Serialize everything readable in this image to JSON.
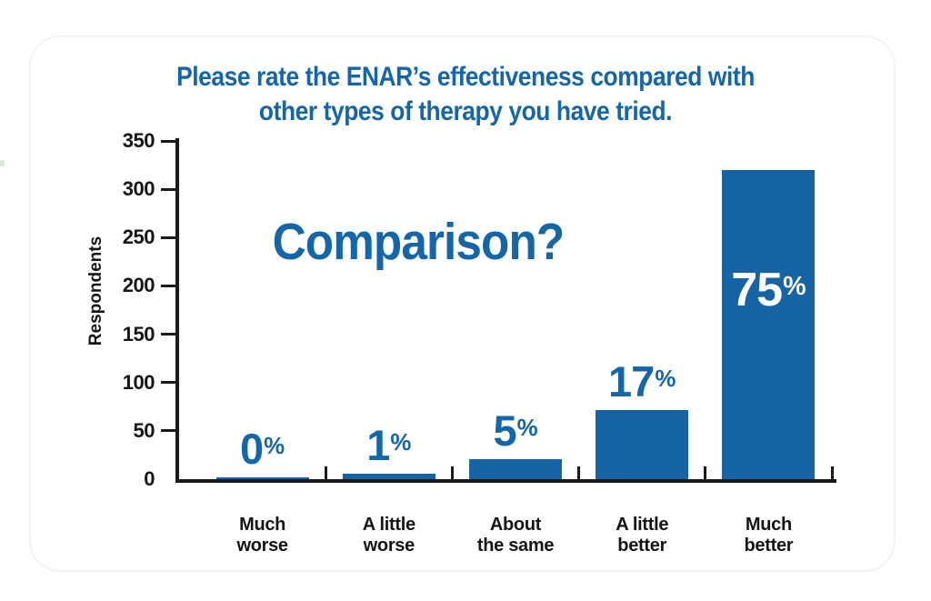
{
  "chart_data": {
    "type": "bar",
    "title": "Please rate the ENAR’s effectiveness compared with other types of therapy you have tried.",
    "title_lines": [
      "Please rate the ENAR’s effectiveness compared with",
      "other types of therapy you have tried."
    ],
    "annotation": "Comparison?",
    "ylabel": "Respondents",
    "xlabel": "",
    "ylim": [
      0,
      350
    ],
    "yticks": [
      0,
      50,
      100,
      150,
      200,
      250,
      300,
      350
    ],
    "grid": false,
    "legend": false,
    "categories": [
      "Much worse",
      "A little worse",
      "About the same",
      "A little better",
      "Much better"
    ],
    "category_lines": [
      [
        "Much",
        "worse"
      ],
      [
        "A little",
        "worse"
      ],
      [
        "About",
        "the same"
      ],
      [
        "A little",
        "better"
      ],
      [
        "Much",
        "better"
      ]
    ],
    "percent_values": [
      0,
      1,
      5,
      17,
      75
    ],
    "percent_labels": [
      "0",
      "1",
      "5",
      "17",
      "75"
    ],
    "percent_unit": "%",
    "values_respondents": [
      2,
      6,
      21,
      72,
      320
    ],
    "label_placement": [
      "above",
      "above",
      "above",
      "above",
      "inside"
    ],
    "colors": {
      "bar": "#1664A5",
      "title_text": "#1566A9",
      "label_above": "#1566A9",
      "label_inside": "#FFFFFF",
      "axis": "#1A1A1A"
    }
  }
}
